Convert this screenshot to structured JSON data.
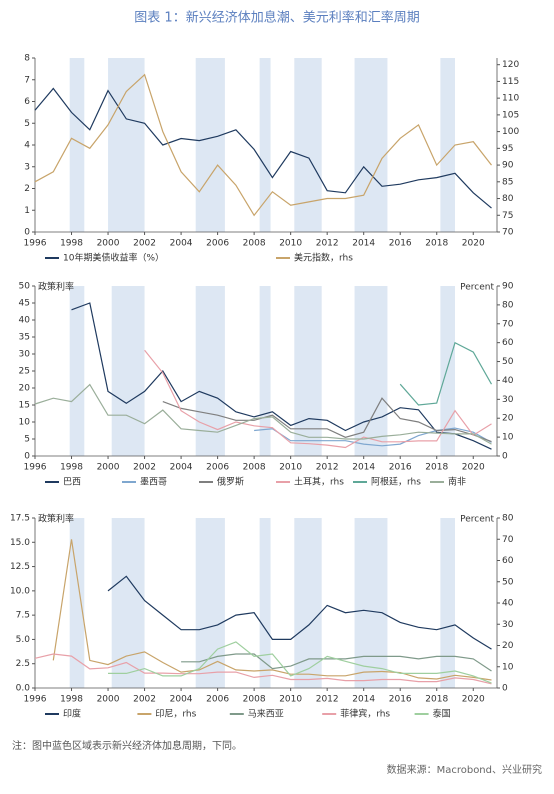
{
  "header": {
    "title": "图表 1：新兴经济体加息潮、美元利率和汇率周期"
  },
  "chart_data": [
    {
      "type": "line",
      "xlim": [
        1996,
        2021.3
      ],
      "xticks": [
        1996,
        1998,
        2000,
        2002,
        2004,
        2006,
        2008,
        2010,
        2012,
        2014,
        2016,
        2018,
        2020
      ],
      "ylim": [
        0,
        8
      ],
      "yticks": [
        0,
        1,
        2,
        3,
        4,
        5,
        6,
        7,
        8
      ],
      "y2lim": [
        70,
        122
      ],
      "y2ticks": [
        70,
        75,
        80,
        85,
        90,
        95,
        100,
        105,
        110,
        115,
        120
      ],
      "shaded_periods": [
        [
          1997.9,
          1998.7
        ],
        [
          2000.0,
          2002.0
        ],
        [
          2004.8,
          2006.4
        ],
        [
          2008.3,
          2008.9
        ],
        [
          2010.2,
          2011.7
        ],
        [
          2013.5,
          2015.3
        ],
        [
          2018.2,
          2019.0
        ]
      ],
      "x": [
        1996,
        1997,
        1998,
        1999,
        2000,
        2001,
        2002,
        2003,
        2004,
        2005,
        2006,
        2007,
        2008,
        2009,
        2010,
        2011,
        2012,
        2013,
        2014,
        2015,
        2016,
        2017,
        2018,
        2019,
        2020,
        2021
      ],
      "series": [
        {
          "name": "10年期美债收益率（%）",
          "color": "#1f3a5f",
          "values": [
            5.6,
            6.6,
            5.5,
            4.7,
            6.5,
            5.2,
            5.0,
            4.0,
            4.3,
            4.2,
            4.4,
            4.7,
            3.8,
            2.5,
            3.7,
            3.4,
            1.9,
            1.8,
            3.0,
            2.1,
            2.2,
            2.4,
            2.5,
            2.7,
            1.8,
            1.1
          ]
        },
        {
          "name": "美元指数，rhs",
          "color": "#c8a46a",
          "axis": "y2",
          "values": [
            85,
            88,
            98,
            95,
            102,
            112,
            117,
            100,
            88,
            82,
            90,
            84,
            75,
            82,
            78,
            79,
            80,
            80,
            81,
            92,
            98,
            102,
            90,
            96,
            97,
            90
          ]
        }
      ]
    },
    {
      "type": "line",
      "left_label": "政策利率",
      "right_label": "Percent",
      "xlim": [
        1996,
        2021.3
      ],
      "xticks": [
        1996,
        1998,
        2000,
        2002,
        2004,
        2006,
        2008,
        2010,
        2012,
        2014,
        2016,
        2018,
        2020
      ],
      "ylim": [
        0,
        50
      ],
      "yticks": [
        0,
        5,
        10,
        15,
        20,
        25,
        30,
        35,
        40,
        45,
        50
      ],
      "y2lim": [
        0,
        90
      ],
      "y2ticks": [
        0,
        10,
        20,
        30,
        40,
        50,
        60,
        70,
        80,
        90
      ],
      "shaded_periods": [
        [
          1997.9,
          1998.7
        ],
        [
          2000.2,
          2002.0
        ],
        [
          2004.8,
          2006.4
        ],
        [
          2008.3,
          2008.9
        ],
        [
          2010.2,
          2011.7
        ],
        [
          2013.5,
          2015.3
        ],
        [
          2018.2,
          2019.0
        ]
      ],
      "x": [
        1996,
        1997,
        1998,
        1999,
        2000,
        2001,
        2002,
        2003,
        2004,
        2005,
        2006,
        2007,
        2008,
        2009,
        2010,
        2011,
        2012,
        2013,
        2014,
        2015,
        2016,
        2017,
        2018,
        2019,
        2020,
        2021
      ],
      "series": [
        {
          "name": "巴西",
          "color": "#1f3a5f",
          "values": [
            null,
            null,
            43,
            45,
            19,
            15.5,
            19,
            25,
            16,
            19,
            17,
            13,
            11.5,
            13,
            9,
            11,
            10.5,
            7.5,
            10,
            11.5,
            14.2,
            13.6,
            7,
            6.5,
            4.5,
            2
          ]
        },
        {
          "name": "墨西哥",
          "color": "#7fa7cf",
          "values": [
            null,
            null,
            null,
            null,
            null,
            null,
            null,
            null,
            null,
            null,
            null,
            null,
            7.5,
            8,
            4.5,
            4.5,
            4.5,
            4.5,
            3.5,
            3,
            3.5,
            6,
            7.5,
            8.2,
            7,
            4
          ]
        },
        {
          "name": "俄罗斯",
          "color": "#7f7f7f",
          "values": [
            null,
            null,
            null,
            null,
            null,
            null,
            null,
            16,
            14,
            13,
            12,
            10.5,
            10.5,
            12,
            8,
            8,
            8,
            5.5,
            7,
            17,
            11,
            10,
            7.5,
            7.75,
            6.25,
            4.25
          ]
        },
        {
          "name": "土耳其，rhs",
          "color": "#e8a0a8",
          "axis": "y2",
          "values": [
            null,
            null,
            null,
            null,
            null,
            null,
            56,
            44,
            24,
            18,
            14,
            18,
            16,
            15,
            7,
            6.5,
            5.75,
            4.5,
            10,
            7.5,
            7.5,
            8,
            8,
            24,
            11,
            17
          ]
        },
        {
          "name": "阿根廷，rhs",
          "color": "#5fa898",
          "axis": "y2",
          "values": [
            null,
            null,
            null,
            null,
            null,
            null,
            null,
            null,
            null,
            null,
            null,
            null,
            null,
            null,
            null,
            null,
            null,
            null,
            null,
            null,
            38,
            27,
            28,
            60,
            55,
            38
          ]
        },
        {
          "name": "南非",
          "color": "#9aae9a",
          "values": [
            15.3,
            17,
            16,
            21,
            12,
            12,
            9.5,
            13.5,
            8,
            7.5,
            7,
            9,
            11,
            11.5,
            7,
            5.5,
            5.5,
            5,
            5,
            5.75,
            6.25,
            7,
            6.75,
            6.5,
            6.5,
            3.5
          ]
        }
      ]
    },
    {
      "type": "line",
      "left_label": "政策利率",
      "right_label": "Percent",
      "xlim": [
        1996,
        2021.3
      ],
      "xticks": [
        1996,
        1998,
        2000,
        2002,
        2004,
        2006,
        2008,
        2010,
        2012,
        2014,
        2016,
        2018,
        2020
      ],
      "ylim": [
        0,
        17.5
      ],
      "yticks": [
        {
          "value": 0,
          "label": "0.0"
        },
        {
          "value": 2.5,
          "label": "2.5"
        },
        {
          "value": 5,
          "label": "5.0"
        },
        {
          "value": 7.5,
          "label": "7.5"
        },
        {
          "value": 10,
          "label": "10.0"
        },
        {
          "value": 12.5,
          "label": "12.5"
        },
        {
          "value": 15,
          "label": "15.0"
        },
        {
          "value": 17.5,
          "label": "17.5"
        }
      ],
      "y2lim": [
        0,
        80
      ],
      "y2ticks": [
        0,
        10,
        20,
        30,
        40,
        50,
        60,
        70,
        80
      ],
      "shaded_periods": [
        [
          1997.9,
          1998.7
        ],
        [
          2000.2,
          2002.0
        ],
        [
          2004.8,
          2006.4
        ],
        [
          2008.3,
          2008.9
        ],
        [
          2010.2,
          2011.7
        ],
        [
          2013.5,
          2015.3
        ],
        [
          2018.2,
          2019.0
        ]
      ],
      "x": [
        1996,
        1997,
        1998,
        1999,
        2000,
        2001,
        2002,
        2003,
        2004,
        2005,
        2006,
        2007,
        2008,
        2009,
        2010,
        2011,
        2012,
        2013,
        2014,
        2015,
        2016,
        2017,
        2018,
        2019,
        2020,
        2021
      ],
      "series": [
        {
          "name": "印度",
          "color": "#1f3a5f",
          "values": [
            null,
            null,
            null,
            null,
            10,
            11.5,
            9,
            7.5,
            6,
            6,
            6.5,
            7.5,
            7.75,
            5,
            5,
            6.5,
            8.5,
            7.75,
            8,
            7.75,
            6.75,
            6.25,
            6,
            6.5,
            5.15,
            4
          ]
        },
        {
          "name": "印尼，rhs",
          "color": "#c8a46a",
          "axis": "y2",
          "values": [
            null,
            13,
            70,
            13,
            11,
            15,
            17,
            12,
            7.5,
            8.5,
            12.5,
            8.5,
            8,
            8.5,
            6.5,
            6.5,
            5.75,
            5.75,
            7.5,
            7.75,
            7.25,
            4.75,
            4.25,
            6,
            5,
            3.75
          ]
        },
        {
          "name": "马来西亚",
          "color": "#7f9a8a",
          "values": [
            null,
            null,
            null,
            null,
            null,
            null,
            null,
            null,
            2.7,
            2.7,
            3.25,
            3.5,
            3.5,
            2,
            2.25,
            3,
            3,
            3,
            3.25,
            3.25,
            3.25,
            3,
            3.25,
            3.25,
            3,
            1.75
          ]
        },
        {
          "name": "菲律宾，rhs",
          "color": "#e8a0a8",
          "axis": "y2",
          "values": [
            14,
            16,
            15,
            9,
            9.5,
            12,
            7,
            7,
            6.75,
            6.75,
            7.5,
            7.5,
            5,
            6,
            4,
            4,
            4.5,
            3.5,
            3.5,
            4,
            4,
            3,
            3,
            4.75,
            4,
            2
          ]
        },
        {
          "name": "泰国",
          "color": "#9fcf9f",
          "values": [
            null,
            null,
            null,
            null,
            1.5,
            1.5,
            2,
            1.25,
            1.25,
            2,
            4,
            4.75,
            3.25,
            3.5,
            1.25,
            2,
            3.25,
            2.75,
            2.25,
            2,
            1.5,
            1.5,
            1.5,
            1.75,
            1.25,
            0.5
          ]
        }
      ]
    }
  ],
  "footer": {
    "note": "注：图中蓝色区域表示新兴经济体加息周期，下同。",
    "source": "数据来源：Macrobond、兴业研究"
  }
}
